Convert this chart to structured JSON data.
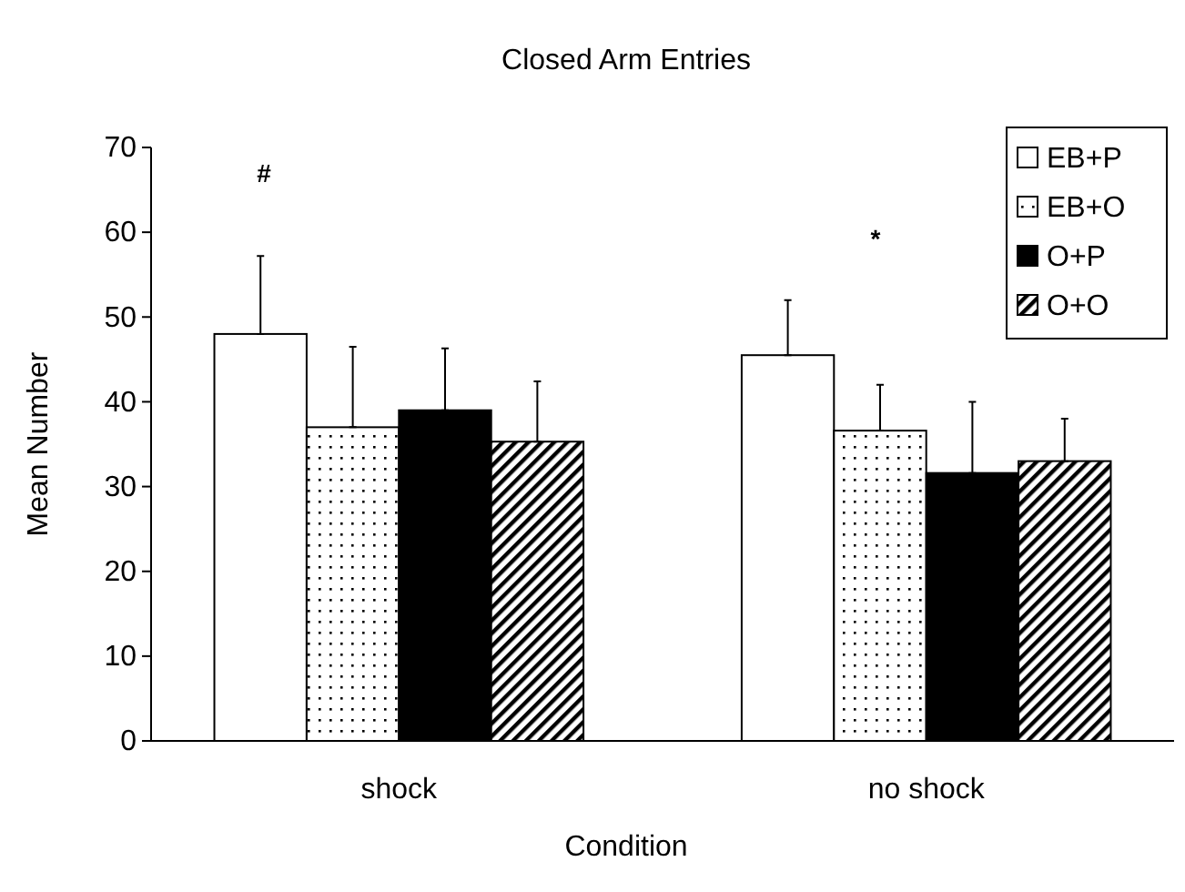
{
  "chart_data": {
    "type": "bar",
    "title": "Closed Arm Entries",
    "xlabel": "Condition",
    "ylabel": "Mean Number",
    "categories": [
      "shock",
      "no shock"
    ],
    "series": [
      {
        "name": "EB+P",
        "color": "#ffffff",
        "values": [
          48,
          45.5
        ],
        "errors": [
          [
            48,
            57.2
          ],
          [
            45.5,
            52
          ]
        ]
      },
      {
        "name": "EB+O",
        "color": "#000000",
        "values": [
          37,
          36.6
        ],
        "errors": [
          [
            37,
            46.5
          ],
          [
            36.6,
            42
          ]
        ]
      },
      {
        "name": "O+P",
        "color": "#000000",
        "values": [
          39,
          31.6
        ],
        "errors": [
          [
            39,
            46.3
          ],
          [
            31.6,
            40
          ]
        ]
      },
      {
        "name": "O+O",
        "color": "#000000",
        "values": [
          35.3,
          33
        ],
        "errors": [
          [
            35.3,
            42.4
          ],
          [
            33,
            38
          ]
        ]
      }
    ],
    "ylim": [
      0,
      70
    ],
    "yticks": [
      0,
      10,
      20,
      30,
      40,
      50,
      60,
      70
    ],
    "grid": false,
    "legend": "top right",
    "annotations": [
      "#",
      "*"
    ]
  }
}
